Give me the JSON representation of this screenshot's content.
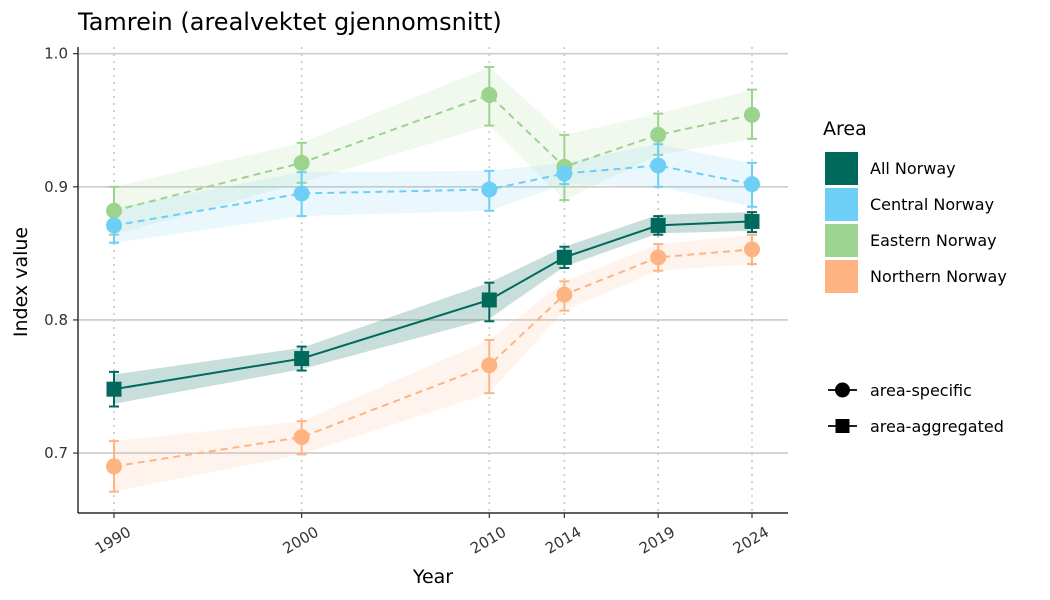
{
  "chart_data": {
    "type": "line",
    "title": "Tamrein (arealvektet gjennomsnitt)",
    "xlabel": "Year",
    "ylabel": "Index value",
    "x": [
      1990,
      2000,
      2010,
      2014,
      2019,
      2024
    ],
    "x_tick_labels": [
      "1990",
      "2000",
      "2010",
      "2014",
      "2019",
      "2024"
    ],
    "xlim": [
      1990,
      2024
    ],
    "ylim": [
      0.655,
      1.005
    ],
    "y_ticks": [
      0.7,
      0.8,
      0.9,
      1.0
    ],
    "y_tick_labels": [
      "0.7",
      "0.8",
      "0.9",
      "1.0"
    ],
    "grid": "horizontal major at y ticks; vertical dotted at x ticks",
    "legend_position": "right",
    "legend": {
      "title": "Area",
      "entries": [
        "All Norway",
        "Central Norway",
        "Eastern Norway",
        "Northern Norway"
      ],
      "shape_entries": [
        "area-specific",
        "area-aggregated"
      ]
    },
    "series": [
      {
        "name": "All Norway",
        "color": "#00695C",
        "line": "solid",
        "marker": "square",
        "type_label": "area-aggregated",
        "values": [
          0.748,
          0.771,
          0.815,
          0.847,
          0.871,
          0.874
        ],
        "err_low": [
          0.735,
          0.762,
          0.799,
          0.839,
          0.864,
          0.866
        ],
        "err_high": [
          0.761,
          0.78,
          0.828,
          0.855,
          0.878,
          0.881
        ],
        "band_low": [
          0.737,
          0.763,
          0.801,
          0.84,
          0.865,
          0.867
        ],
        "band_high": [
          0.759,
          0.779,
          0.828,
          0.855,
          0.879,
          0.881
        ]
      },
      {
        "name": "Central Norway",
        "color": "#6DCFF6",
        "line": "dashed",
        "marker": "circle",
        "type_label": "area-specific",
        "values": [
          0.871,
          0.895,
          0.898,
          0.91,
          0.916,
          0.902
        ],
        "err_low": [
          0.858,
          0.878,
          0.882,
          0.902,
          0.9,
          0.885
        ],
        "err_high": [
          0.884,
          0.911,
          0.912,
          0.918,
          0.932,
          0.918
        ],
        "band_low": [
          0.858,
          0.878,
          0.882,
          0.902,
          0.9,
          0.885
        ],
        "band_high": [
          0.884,
          0.911,
          0.912,
          0.918,
          0.932,
          0.918
        ]
      },
      {
        "name": "Eastern Norway",
        "color": "#9BD38F",
        "line": "dashed",
        "marker": "circle",
        "type_label": "area-specific",
        "values": [
          0.882,
          0.918,
          0.969,
          0.915,
          0.939,
          0.954
        ],
        "err_low": [
          0.864,
          0.903,
          0.946,
          0.89,
          0.924,
          0.936
        ],
        "err_high": [
          0.9,
          0.933,
          0.99,
          0.939,
          0.955,
          0.973
        ],
        "band_low": [
          0.864,
          0.903,
          0.946,
          0.89,
          0.924,
          0.936
        ],
        "band_high": [
          0.9,
          0.933,
          0.99,
          0.939,
          0.955,
          0.973
        ]
      },
      {
        "name": "Northern Norway",
        "color": "#FDB482",
        "line": "dashed",
        "marker": "circle",
        "type_label": "area-specific",
        "values": [
          0.69,
          0.712,
          0.766,
          0.819,
          0.847,
          0.853
        ],
        "err_low": [
          0.671,
          0.699,
          0.745,
          0.807,
          0.837,
          0.842
        ],
        "err_high": [
          0.709,
          0.724,
          0.785,
          0.829,
          0.857,
          0.864
        ],
        "band_low": [
          0.671,
          0.699,
          0.745,
          0.807,
          0.837,
          0.842
        ],
        "band_high": [
          0.709,
          0.724,
          0.785,
          0.829,
          0.857,
          0.864
        ]
      }
    ]
  }
}
